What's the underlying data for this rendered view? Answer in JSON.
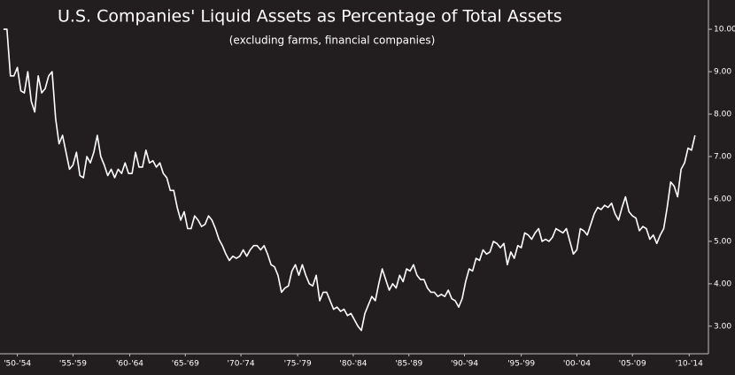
{
  "chart_data": {
    "type": "line",
    "title": "U.S. Companies' Liquid Assets as Percentage of Total Assets",
    "subtitle": "(excluding farms, financial companies)",
    "x": [
      1951.2,
      1951.5,
      1951.8,
      1952.1,
      1952.4,
      1952.7,
      1953.0,
      1953.3,
      1953.6,
      1953.9,
      1954.2,
      1954.5,
      1954.8,
      1955.1,
      1955.4,
      1955.7,
      1956.0,
      1956.3,
      1956.6,
      1956.9,
      1957.2,
      1957.5,
      1957.8,
      1958.1,
      1958.4,
      1958.7,
      1959.0,
      1959.3,
      1959.6,
      1959.9,
      1960.2,
      1960.5,
      1960.8,
      1961.1,
      1961.4,
      1961.7,
      1962.0,
      1962.3,
      1962.6,
      1962.9,
      1963.2,
      1963.5,
      1963.8,
      1964.1,
      1964.4,
      1964.7,
      1965.0,
      1965.3,
      1965.6,
      1965.9,
      1966.2,
      1966.5,
      1966.8,
      1967.1,
      1967.4,
      1967.7,
      1968.0,
      1968.3,
      1968.6,
      1968.9,
      1969.2,
      1969.5,
      1969.8,
      1970.1,
      1970.4,
      1970.7,
      1971.0,
      1971.3,
      1971.6,
      1971.9,
      1972.2,
      1972.5,
      1972.8,
      1973.1,
      1973.4,
      1973.7,
      1974.0,
      1974.3,
      1974.6,
      1974.9,
      1975.2,
      1975.5,
      1975.8,
      1976.1,
      1976.4,
      1976.7,
      1977.0,
      1977.3,
      1977.6,
      1977.9,
      1978.2,
      1978.5,
      1978.8,
      1979.1,
      1979.4,
      1979.7,
      1980.0,
      1980.3,
      1980.6,
      1980.9,
      1981.2,
      1981.5,
      1981.8,
      1982.1,
      1982.4,
      1982.7,
      1983.0,
      1983.3,
      1983.6,
      1983.9,
      1984.2,
      1984.5,
      1984.8,
      1985.1,
      1985.4,
      1985.7,
      1986.0,
      1986.3,
      1986.6,
      1986.9,
      1987.2,
      1987.5,
      1987.8,
      1988.1,
      1988.4,
      1988.7,
      1989.0,
      1989.3,
      1989.6,
      1989.9,
      1990.2,
      1990.5,
      1990.8,
      1991.1,
      1991.4,
      1991.7,
      1992.0,
      1992.3,
      1992.6,
      1992.9,
      1993.2,
      1993.5,
      1993.8,
      1994.1,
      1994.4,
      1994.7,
      1995.0,
      1995.3,
      1995.6,
      1995.9,
      1996.2,
      1996.5,
      1996.8,
      1997.1,
      1997.4,
      1997.7,
      1998.0,
      1998.3,
      1998.6,
      1998.9,
      1999.2,
      1999.5,
      1999.8,
      2000.1,
      2000.4,
      2000.7,
      2001.0,
      2001.3,
      2001.6,
      2001.9,
      2002.2,
      2002.5,
      2002.8,
      2003.1,
      2003.4,
      2003.7,
      2004.0,
      2004.3,
      2004.6,
      2004.9,
      2005.2,
      2005.5,
      2005.8,
      2006.1,
      2006.4,
      2006.7,
      2007.0,
      2007.3,
      2007.6,
      2007.9,
      2008.2,
      2008.5,
      2008.8,
      2009.1,
      2009.4,
      2009.7,
      2010.0,
      2010.3,
      2010.6,
      2010.9
    ],
    "series": [
      {
        "color": "#ffffff",
        "values": [
          10.0,
          10.0,
          8.9,
          8.9,
          9.1,
          8.55,
          8.5,
          9.0,
          8.3,
          8.05,
          8.9,
          8.5,
          8.6,
          8.9,
          9.0,
          7.9,
          7.3,
          7.5,
          7.1,
          6.7,
          6.8,
          7.1,
          6.55,
          6.5,
          7.0,
          6.85,
          7.1,
          7.5,
          7.0,
          6.8,
          6.55,
          6.7,
          6.5,
          6.7,
          6.6,
          6.85,
          6.6,
          6.6,
          7.1,
          6.75,
          6.75,
          7.15,
          6.85,
          6.9,
          6.75,
          6.85,
          6.6,
          6.5,
          6.2,
          6.2,
          5.8,
          5.5,
          5.7,
          5.3,
          5.3,
          5.6,
          5.5,
          5.35,
          5.4,
          5.6,
          5.5,
          5.3,
          5.05,
          4.9,
          4.7,
          4.55,
          4.65,
          4.6,
          4.65,
          4.8,
          4.65,
          4.8,
          4.9,
          4.9,
          4.8,
          4.9,
          4.7,
          4.45,
          4.4,
          4.2,
          3.8,
          3.9,
          3.95,
          4.3,
          4.45,
          4.2,
          4.45,
          4.2,
          4.0,
          3.95,
          4.2,
          3.6,
          3.8,
          3.8,
          3.6,
          3.4,
          3.45,
          3.35,
          3.4,
          3.25,
          3.3,
          3.15,
          3.0,
          2.9,
          3.3,
          3.5,
          3.7,
          3.6,
          4.0,
          4.35,
          4.1,
          3.85,
          4.0,
          3.9,
          4.2,
          4.05,
          4.35,
          4.3,
          4.45,
          4.2,
          4.1,
          4.1,
          3.9,
          3.8,
          3.8,
          3.7,
          3.75,
          3.7,
          3.85,
          3.65,
          3.6,
          3.45,
          3.65,
          4.05,
          4.35,
          4.3,
          4.6,
          4.55,
          4.8,
          4.7,
          4.75,
          5.0,
          4.95,
          4.85,
          4.95,
          4.45,
          4.75,
          4.6,
          4.9,
          4.85,
          5.2,
          5.15,
          5.05,
          5.2,
          5.3,
          5.0,
          5.05,
          5.0,
          5.1,
          5.3,
          5.25,
          5.2,
          5.3,
          5.0,
          4.7,
          4.8,
          5.3,
          5.25,
          5.15,
          5.4,
          5.65,
          5.8,
          5.75,
          5.85,
          5.8,
          5.9,
          5.65,
          5.5,
          5.8,
          6.05,
          5.7,
          5.6,
          5.55,
          5.25,
          5.35,
          5.3,
          5.05,
          5.15,
          4.95,
          5.15,
          5.3,
          5.8,
          6.4,
          6.3,
          6.05,
          6.7,
          6.85,
          7.2,
          7.15,
          7.5
        ]
      }
    ],
    "xlim": [
      1950.9,
      2012.06
    ],
    "xticks": [
      {
        "value": 1952.4,
        "label": "'50-'54"
      },
      {
        "value": 1957.2,
        "label": "'55-'59"
      },
      {
        "value": 1962.1,
        "label": "'60-'64"
      },
      {
        "value": 1966.9,
        "label": "'65-'69"
      },
      {
        "value": 1971.7,
        "label": "'70-'74"
      },
      {
        "value": 1976.6,
        "label": "'75-'79"
      },
      {
        "value": 1981.4,
        "label": "'80-'84"
      },
      {
        "value": 1986.2,
        "label": "'85-'89"
      },
      {
        "value": 1991.0,
        "label": "'90-'94"
      },
      {
        "value": 1995.9,
        "label": "'95-'99"
      },
      {
        "value": 2000.7,
        "label": "'00-'04"
      },
      {
        "value": 2005.5,
        "label": "'05-'09"
      },
      {
        "value": 2010.4,
        "label": "'10-'14"
      }
    ],
    "ylim": [
      2.35,
      10.69
    ],
    "yticks": [
      {
        "value": 3,
        "label": "3.00"
      },
      {
        "value": 4,
        "label": "4.00"
      },
      {
        "value": 5,
        "label": "5.00"
      },
      {
        "value": 6,
        "label": "6.00"
      },
      {
        "value": 7,
        "label": "7.00"
      },
      {
        "value": 8,
        "label": "8.00"
      },
      {
        "value": 9,
        "label": "9.00"
      },
      {
        "value": 10,
        "label": "10.00"
      }
    ]
  }
}
